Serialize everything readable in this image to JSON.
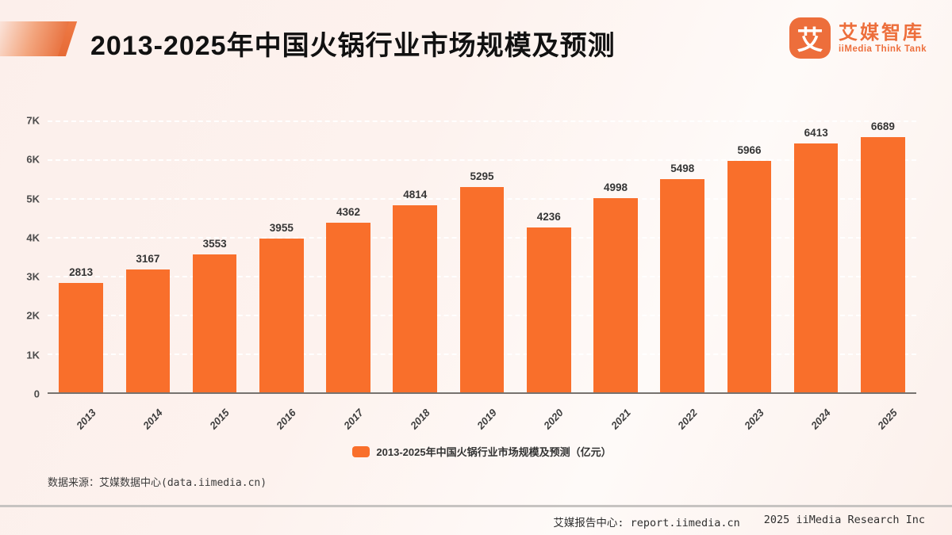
{
  "header": {
    "title": "2013-2025年中国火锅行业市场规模及预测",
    "logo": {
      "icon_char": "艾",
      "name_cn": "艾媒智库",
      "name_en": "iiMedia Think Tank"
    }
  },
  "chart_data": {
    "type": "bar",
    "title": "2013-2025年中国火锅行业市场规模及预测",
    "categories": [
      "2013",
      "2014",
      "2015",
      "2016",
      "2017",
      "2018",
      "2019",
      "2020",
      "2021",
      "2022",
      "2023",
      "2024",
      "2025"
    ],
    "values": [
      2813,
      3167,
      3553,
      3955,
      4362,
      4814,
      5295,
      4236,
      4998,
      5498,
      5966,
      6413,
      6689
    ],
    "unit": "亿元",
    "xlabel": "",
    "ylabel": "",
    "ylim": [
      0,
      7000
    ],
    "ytick_labels": [
      "0",
      "1K",
      "2K",
      "3K",
      "4K",
      "5K",
      "6K",
      "7K"
    ],
    "grid": "horizontal-dashed",
    "legend": {
      "label": "2013-2025年中国火锅行业市场规模及预测（亿元）",
      "position": "bottom-center"
    },
    "bar_color": "#f96f2b"
  },
  "footer": {
    "source": "数据来源：艾媒数据中心(data.iimedia.cn)",
    "report_center": "艾媒报告中心: report.iimedia.cn",
    "copyright": "2025 iiMedia Research Inc"
  },
  "colors": {
    "bar": "#f96f2b",
    "accent": "#ed6e3b",
    "background": "#fdf1ed"
  }
}
